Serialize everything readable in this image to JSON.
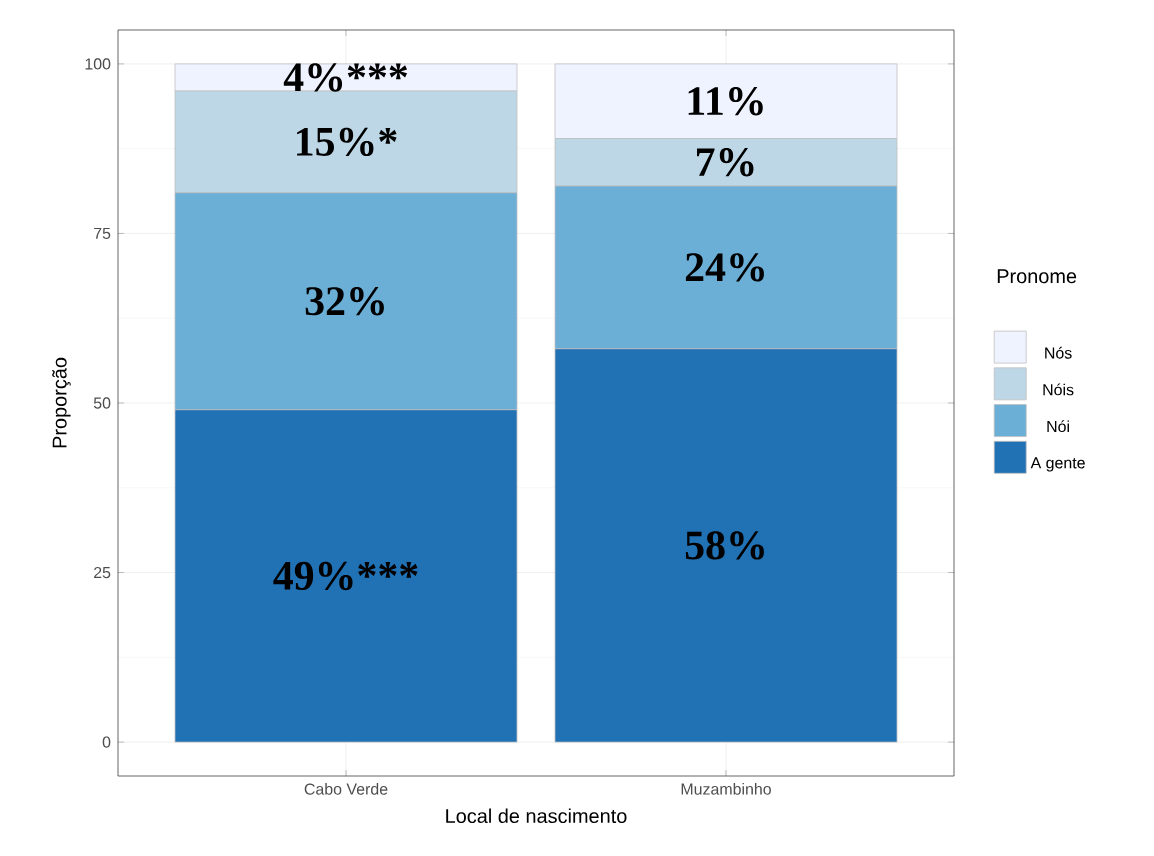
{
  "chart_data": {
    "type": "bar",
    "stacked": true,
    "xlabel": "Local de nascimento",
    "ylabel": "Proporção",
    "legend_title": "Pronome",
    "legend": "right",
    "grid": true,
    "categories": [
      "Cabo Verde",
      "Muzambinho"
    ],
    "ylim": [
      -5,
      105
    ],
    "yticks": [
      0,
      25,
      50,
      75,
      100
    ],
    "series": [
      {
        "name": "A gente",
        "color": "#2171b5",
        "values": [
          49,
          58
        ],
        "value_labels": [
          "49%***",
          "58%"
        ]
      },
      {
        "name": "Nói",
        "color": "#6baed6",
        "values": [
          32,
          24
        ],
        "value_labels": [
          "32%",
          "24%"
        ]
      },
      {
        "name": "Nóis",
        "color": "#bdd7e7",
        "values": [
          15,
          7
        ],
        "value_labels": [
          "15%*",
          "7%"
        ]
      },
      {
        "name": "Nós",
        "color": "#eff3ff",
        "values": [
          4,
          11
        ],
        "value_labels": [
          "4%***",
          "11%"
        ]
      }
    ]
  }
}
